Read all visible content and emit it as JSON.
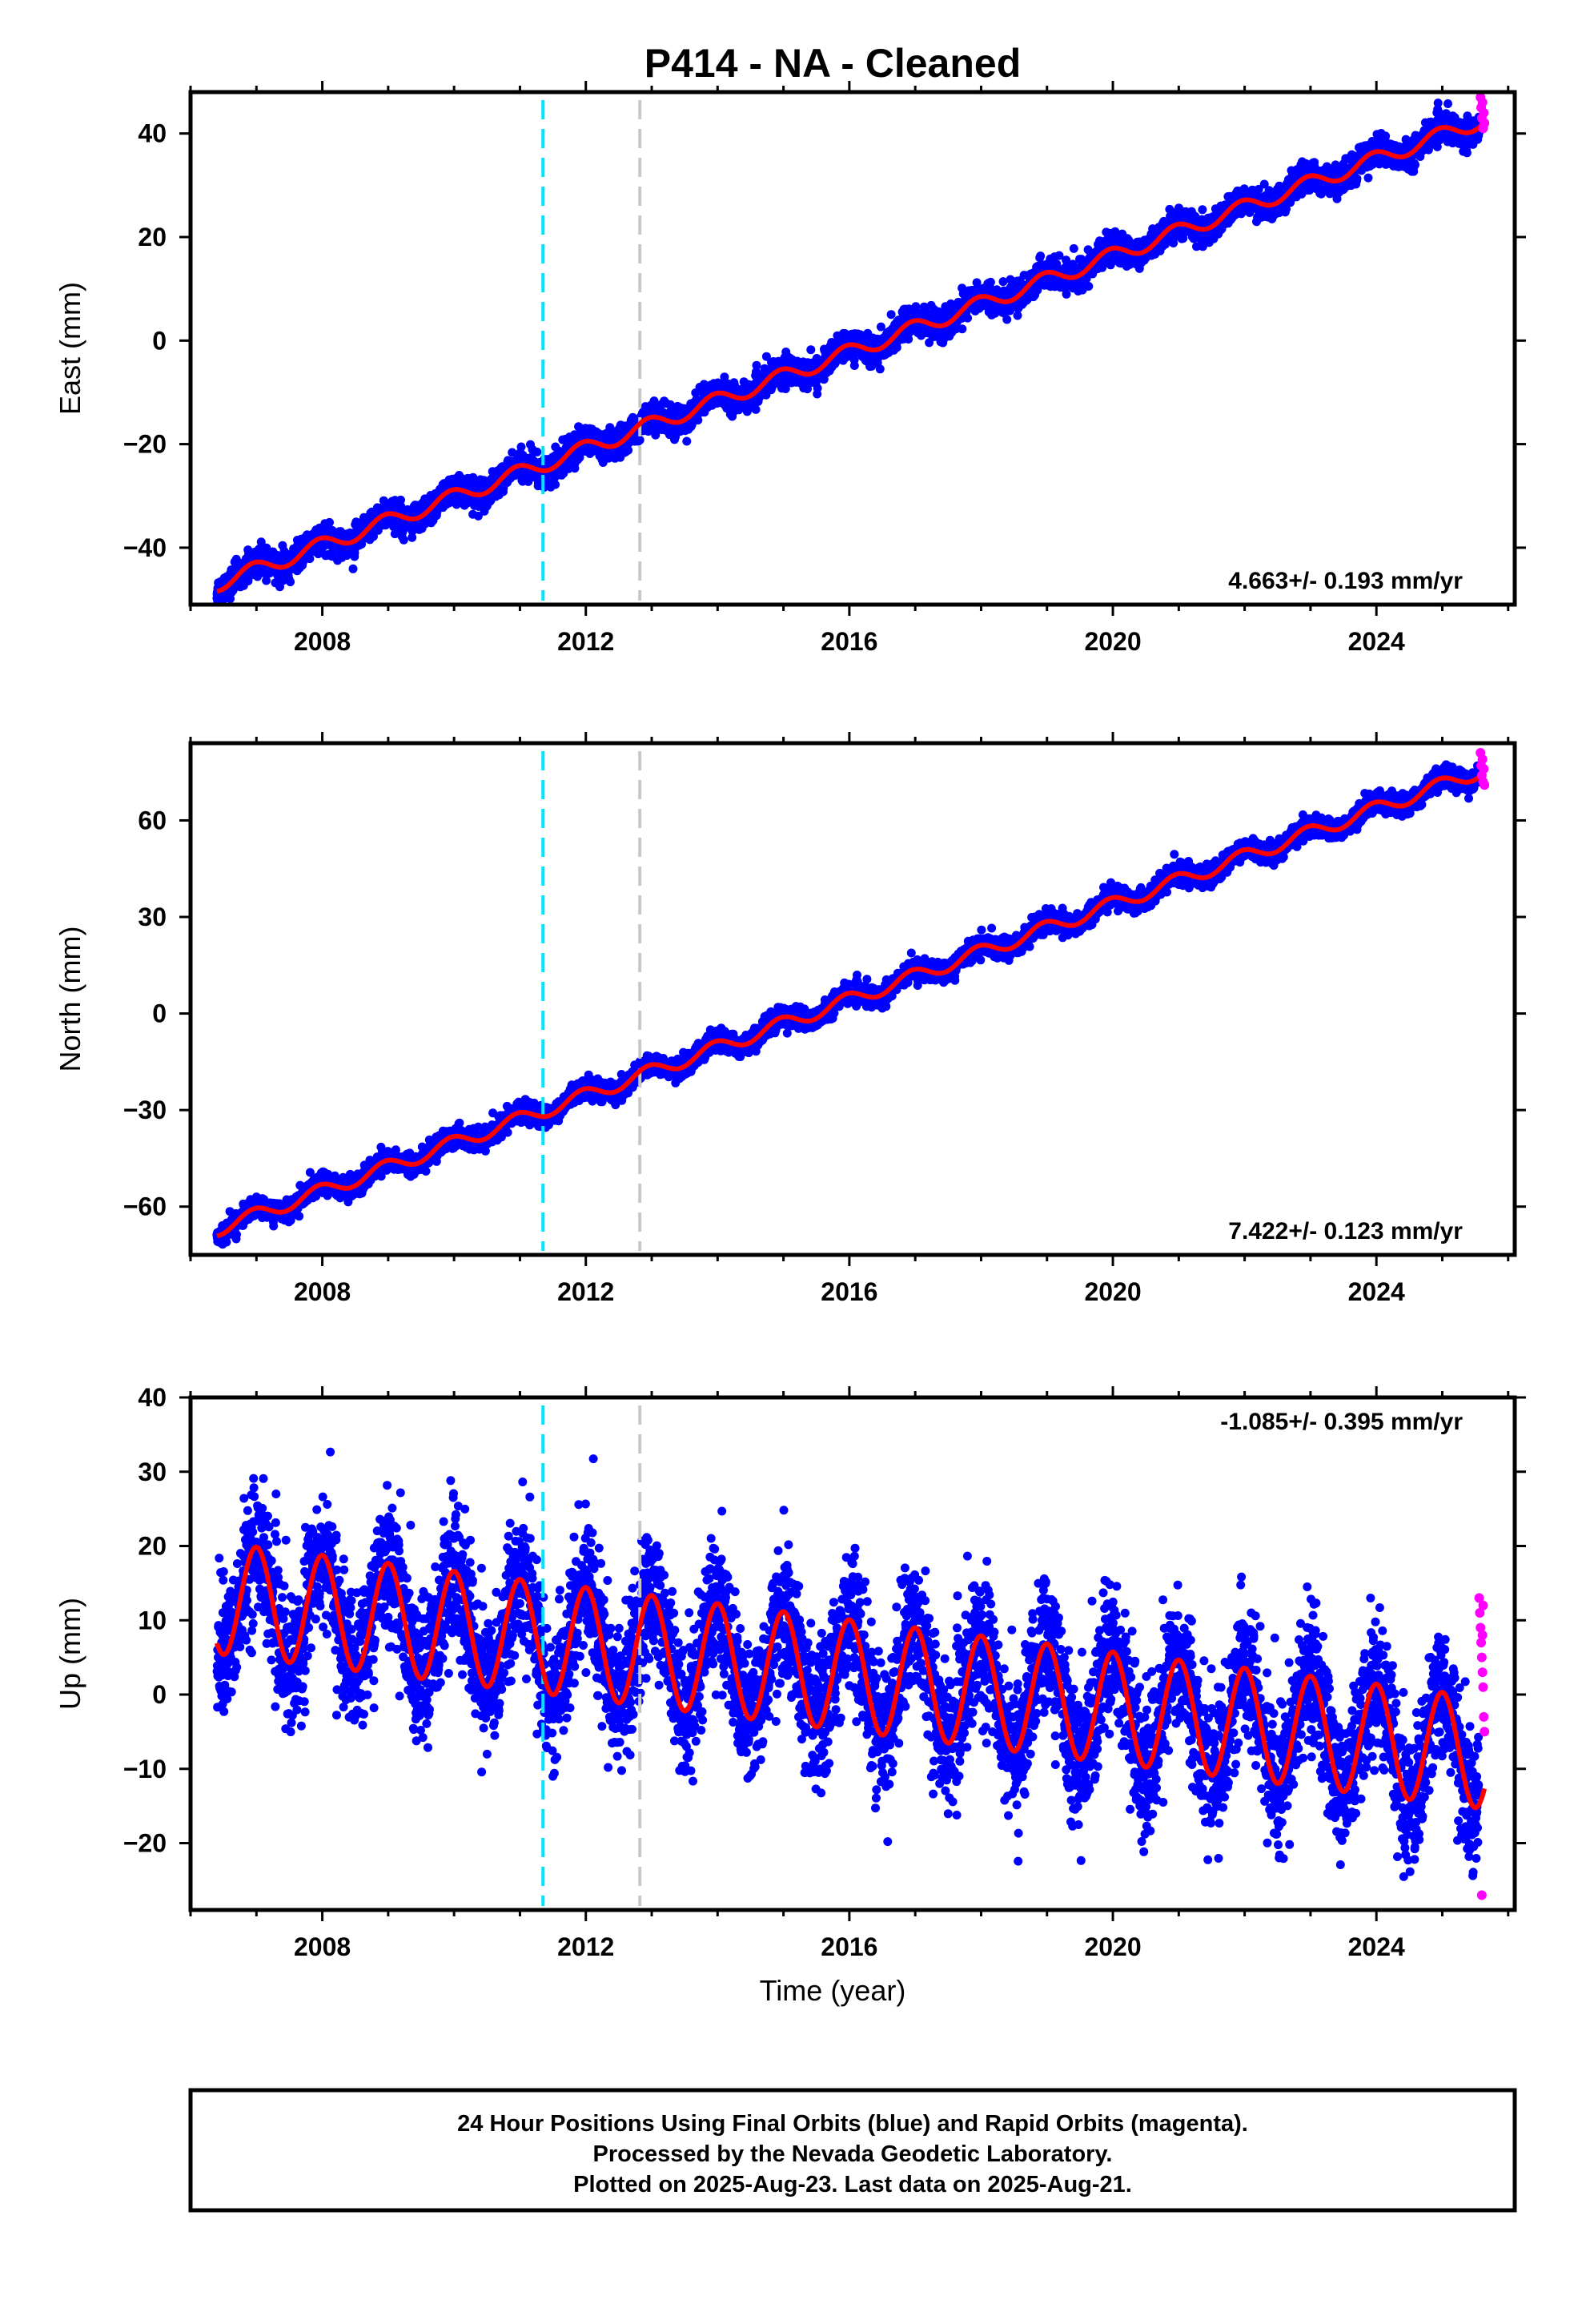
{
  "title": "P414  - NA - Cleaned",
  "xlabel": "Time (year)",
  "footer": {
    "line1": "24 Hour Positions Using Final Orbits (blue) and Rapid Orbits (magenta).",
    "line2": "Processed by the Nevada Geodetic Laboratory.",
    "line3": "Plotted on 2025-Aug-23. Last data on 2025-Aug-21."
  },
  "colors": {
    "final_points": "#0000ff",
    "rapid_points": "#ff00ff",
    "model_line": "#ff0000",
    "event_line_1": "#00e5ff",
    "event_line_2": "#c8c8c8"
  },
  "chart_data": [
    {
      "type": "scatter",
      "panel": "east",
      "ylabel": "East (mm)",
      "xlim": [
        2006.0,
        2026.1
      ],
      "ylim": [
        -51,
        48
      ],
      "xticks": [
        2008,
        2012,
        2016,
        2020,
        2024
      ],
      "yticks": [
        -40,
        -20,
        0,
        20,
        40
      ],
      "rate_label": "4.663+/- 0.193 mm/yr",
      "rate_position": "bottom-right",
      "event_lines": [
        2011.35,
        2012.82
      ],
      "start_year": 2006.4,
      "end_year": 2025.64,
      "model": {
        "start_value": -47,
        "trend_mm_per_yr": 4.663,
        "annual_amplitude": 1.5,
        "annual_phase_year": 0.55,
        "scatter_mm": 1.3
      },
      "rapid_points": [
        [
          2025.58,
          47
        ],
        [
          2025.59,
          45
        ],
        [
          2025.6,
          43
        ],
        [
          2025.61,
          46
        ],
        [
          2025.62,
          41
        ],
        [
          2025.63,
          44
        ],
        [
          2025.64,
          42
        ]
      ]
    },
    {
      "type": "scatter",
      "panel": "north",
      "ylabel": "North (mm)",
      "xlim": [
        2006.0,
        2026.1
      ],
      "ylim": [
        -75,
        84
      ],
      "xticks": [
        2008,
        2012,
        2016,
        2020,
        2024
      ],
      "yticks": [
        -60,
        -30,
        0,
        30,
        60
      ],
      "rate_label": "7.422+/- 0.123 mm/yr",
      "rate_position": "bottom-right",
      "event_lines": [
        2011.35,
        2012.82
      ],
      "start_year": 2006.4,
      "end_year": 2025.64,
      "model": {
        "start_value": -67,
        "trend_mm_per_yr": 7.422,
        "annual_amplitude": 2.2,
        "annual_phase_year": 0.55,
        "scatter_mm": 1.5
      },
      "rapid_points": [
        [
          2025.58,
          81
        ],
        [
          2025.59,
          77
        ],
        [
          2025.6,
          74
        ],
        [
          2025.61,
          79
        ],
        [
          2025.62,
          72
        ],
        [
          2025.63,
          76
        ],
        [
          2025.64,
          71
        ]
      ]
    },
    {
      "type": "scatter",
      "panel": "up",
      "ylabel": "Up (mm)",
      "xlim": [
        2006.0,
        2026.1
      ],
      "ylim": [
        -29,
        40
      ],
      "xticks": [
        2008,
        2012,
        2016,
        2020,
        2024
      ],
      "yticks": [
        -20,
        -10,
        0,
        10,
        20,
        30,
        40
      ],
      "rate_label": "-1.085+/- 0.395 mm/yr",
      "rate_position": "top-right",
      "event_lines": [
        2011.35,
        2012.82
      ],
      "start_year": 2006.4,
      "end_year": 2025.64,
      "model": {
        "start_value": 13,
        "trend_mm_per_yr": -1.085,
        "annual_amplitude": 7.5,
        "annual_phase_year": 0.6,
        "scatter_mm": 4.5
      },
      "rapid_points": [
        [
          2025.56,
          13
        ],
        [
          2025.57,
          11
        ],
        [
          2025.58,
          9
        ],
        [
          2025.59,
          7
        ],
        [
          2025.6,
          5
        ],
        [
          2025.61,
          3
        ],
        [
          2025.62,
          1
        ],
        [
          2025.63,
          -3
        ],
        [
          2025.64,
          -5
        ],
        [
          2025.6,
          -27
        ],
        [
          2025.61,
          8
        ],
        [
          2025.62,
          12
        ]
      ]
    }
  ]
}
